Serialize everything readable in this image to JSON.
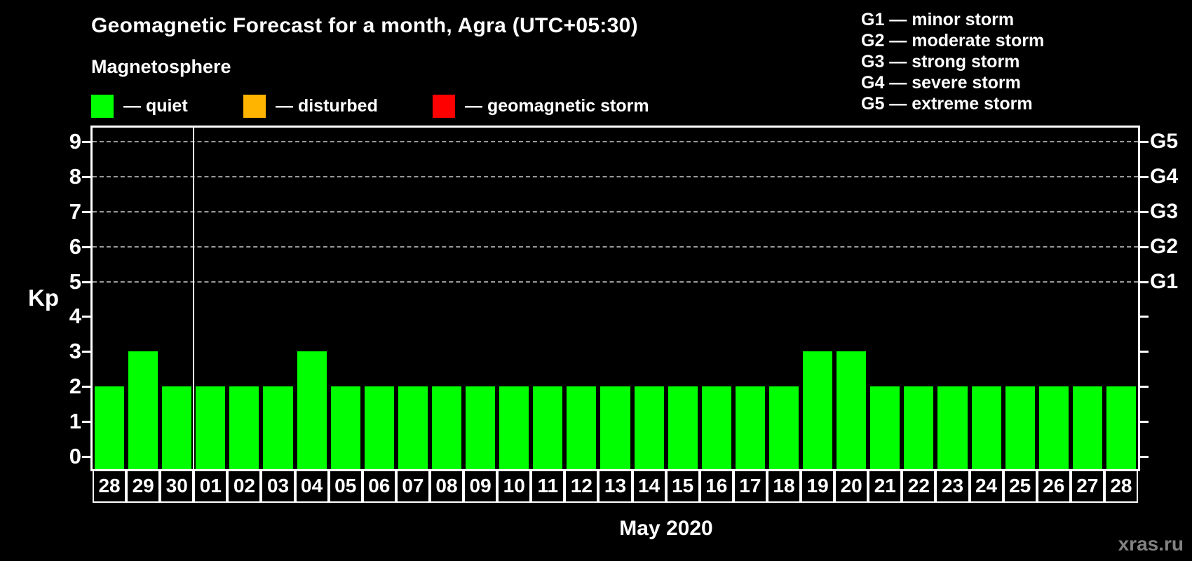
{
  "header": {
    "title": "Geomagnetic Forecast for a month, Agra (UTC+05:30)",
    "subtitle": "Magnetosphere"
  },
  "legend": {
    "items": [
      {
        "name": "quiet",
        "label": "— quiet",
        "color": "#00ff00"
      },
      {
        "name": "disturbed",
        "label": "— disturbed",
        "color": "#ffb400"
      },
      {
        "name": "geomagnetic-storm",
        "label": "— geomagnetic storm",
        "color": "#ff0000"
      }
    ]
  },
  "storm_scale_legend": {
    "lines": [
      "G1 — minor storm",
      "G2 — moderate storm",
      "G3 — strong storm",
      "G4 — severe storm",
      "G5 — extreme storm"
    ]
  },
  "chart_data": {
    "type": "bar",
    "title": "Geomagnetic Forecast for a month, Agra (UTC+05:30)",
    "ylabel": "Kp",
    "xlabel": "May 2020",
    "categories": [
      "28",
      "29",
      "30",
      "01",
      "02",
      "03",
      "04",
      "05",
      "06",
      "07",
      "08",
      "09",
      "10",
      "11",
      "12",
      "13",
      "14",
      "15",
      "16",
      "17",
      "18",
      "19",
      "20",
      "21",
      "22",
      "23",
      "24",
      "25",
      "26",
      "27",
      "28"
    ],
    "values": [
      2,
      3,
      2,
      2,
      2,
      2,
      3,
      2,
      2,
      2,
      2,
      2,
      2,
      2,
      2,
      2,
      2,
      2,
      2,
      2,
      2,
      3,
      3,
      2,
      2,
      2,
      2,
      2,
      2,
      2,
      2
    ],
    "bar_color": "#00ff00",
    "ylim": [
      0,
      9
    ],
    "yticks": [
      0,
      1,
      2,
      3,
      4,
      5,
      6,
      7,
      8,
      9
    ],
    "grid": "horizontal dashed lines at Kp 5 through 9",
    "right_axis_labels": [
      {
        "label": "G1",
        "kp": 5
      },
      {
        "label": "G2",
        "kp": 6
      },
      {
        "label": "G3",
        "kp": 7
      },
      {
        "label": "G4",
        "kp": 8
      },
      {
        "label": "G5",
        "kp": 9
      }
    ],
    "month_boundary_index": 3
  },
  "watermark": "xras.ru"
}
